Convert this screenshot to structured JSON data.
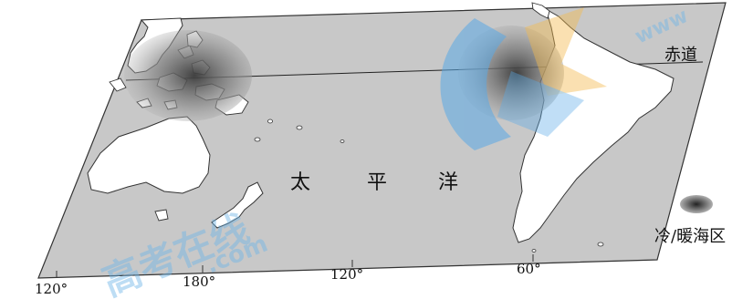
{
  "map": {
    "equator_label": "赤道",
    "ocean_label_chars": [
      "太",
      "平",
      "洋"
    ],
    "legend_label": "冷/暖海区",
    "longitude_labels": [
      "120°",
      "180°",
      "120°",
      "60°"
    ],
    "watermark": {
      "text_cn": "高考在线",
      "text_url_top": "www",
      "text_url_bottom": ".com"
    },
    "colors": {
      "sea": "#c8c8c8",
      "land": "#ffffff",
      "outline": "#333333",
      "zone_dark": "#555555",
      "accent_blue": "#5aa9e6",
      "accent_orange": "#f2b94e"
    }
  }
}
